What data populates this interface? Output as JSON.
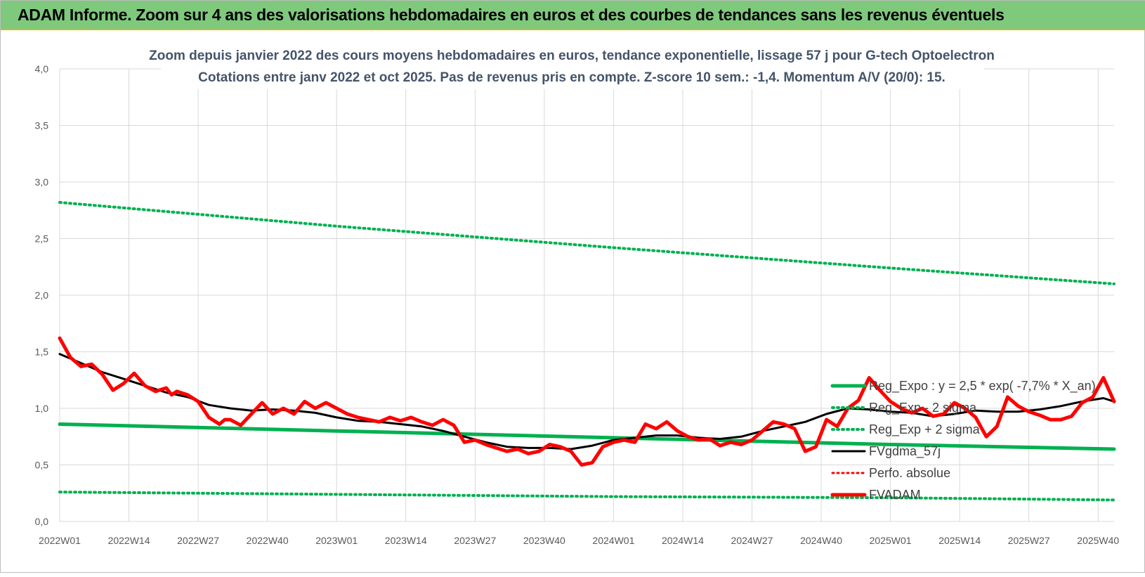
{
  "banner": {
    "title": "ADAM Informe. Zoom sur 4 ans des valorisations hebdomadaires en euros et des courbes de tendances sans les revenus éventuels"
  },
  "chart_data": {
    "type": "line",
    "title_lines": [
      "Zoom depuis janvier 2022 des cours moyens hebdomadaires en euros, tendance exponentielle, lissage 57 j pour G-tech Optoelectron",
      "Cotations entre janv 2022 et oct 2025. Pas de revenus pris en compte. Z-score 10 sem.: -1,4. Momentum A/V (20/0): 15."
    ],
    "y_ticks": [
      "0,0",
      "0,5",
      "1,0",
      "1,5",
      "2,0",
      "2,5",
      "3,0",
      "3,5",
      "4,0"
    ],
    "ylim": [
      0,
      4
    ],
    "x_ticks": [
      "2022W01",
      "2022W14",
      "2022W27",
      "2022W40",
      "2023W01",
      "2023W14",
      "2023W27",
      "2023W40",
      "2024W01",
      "2024W14",
      "2024W27",
      "2024W40",
      "2025W01",
      "2025W14",
      "2025W27",
      "2025W40"
    ],
    "grid": true,
    "legend_position": "right",
    "series": [
      {
        "name": "Reg_Expo : y = 2,5 * exp( -7,7% * X_an)",
        "color": "#00b050",
        "style": "solid",
        "width": 5,
        "x": [
          0,
          52,
          104,
          156,
          198
        ],
        "values": [
          0.86,
          0.8,
          0.74,
          0.68,
          0.64
        ]
      },
      {
        "name": "Reg_Exp - 2 sigma",
        "color": "#00b050",
        "style": "dotted",
        "width": 4,
        "x": [
          0,
          52,
          104,
          156,
          198
        ],
        "values": [
          0.26,
          0.24,
          0.22,
          0.21,
          0.19
        ]
      },
      {
        "name": "Reg_Exp + 2 sigma",
        "color": "#00b050",
        "style": "dotted",
        "width": 4,
        "x": [
          0,
          52,
          104,
          156,
          198
        ],
        "values": [
          2.82,
          2.61,
          2.42,
          2.24,
          2.1
        ]
      },
      {
        "name": "FVgdma_57j",
        "color": "#000000",
        "style": "solid",
        "width": 3,
        "x": [
          0,
          4,
          8,
          12,
          16,
          20,
          24,
          28,
          32,
          36,
          40,
          44,
          48,
          52,
          56,
          60,
          64,
          68,
          72,
          76,
          80,
          84,
          88,
          92,
          96,
          100,
          104,
          108,
          112,
          116,
          120,
          124,
          128,
          132,
          136,
          140,
          144,
          148,
          152,
          156,
          160,
          164,
          168,
          172,
          176,
          180,
          184,
          188,
          192,
          196,
          198
        ],
        "values": [
          1.48,
          1.4,
          1.32,
          1.26,
          1.2,
          1.14,
          1.1,
          1.03,
          1.0,
          0.98,
          0.99,
          0.98,
          0.96,
          0.92,
          0.89,
          0.88,
          0.86,
          0.84,
          0.8,
          0.75,
          0.7,
          0.66,
          0.65,
          0.65,
          0.64,
          0.67,
          0.72,
          0.74,
          0.76,
          0.76,
          0.74,
          0.73,
          0.75,
          0.8,
          0.84,
          0.88,
          0.95,
          1.0,
          0.99,
          0.97,
          0.96,
          0.93,
          0.95,
          0.98,
          0.97,
          0.97,
          0.99,
          1.02,
          1.06,
          1.09,
          1.06
        ]
      },
      {
        "name": "Perfo. absolue",
        "color": "#ff0000",
        "style": "dotted",
        "width": 3,
        "x": [],
        "values": []
      },
      {
        "name": "FVADAM",
        "color": "#ff0000",
        "style": "solid",
        "width": 5,
        "x": [
          0,
          2,
          4,
          6,
          8,
          10,
          12,
          14,
          16,
          18,
          20,
          21,
          22,
          24,
          26,
          28,
          30,
          31,
          32,
          34,
          36,
          38,
          40,
          42,
          44,
          46,
          48,
          50,
          52,
          54,
          56,
          58,
          60,
          62,
          64,
          66,
          68,
          70,
          72,
          74,
          76,
          78,
          80,
          82,
          84,
          86,
          88,
          90,
          92,
          94,
          96,
          98,
          100,
          102,
          104,
          106,
          108,
          110,
          112,
          114,
          116,
          118,
          120,
          122,
          124,
          126,
          128,
          130,
          132,
          134,
          136,
          138,
          140,
          142,
          144,
          146,
          148,
          150,
          152,
          154,
          156,
          158,
          160,
          162,
          164,
          166,
          168,
          170,
          172,
          174,
          176,
          178,
          180,
          182,
          184,
          186,
          188,
          190,
          192,
          194,
          196,
          198
        ],
        "values": [
          1.62,
          1.45,
          1.37,
          1.39,
          1.3,
          1.16,
          1.22,
          1.31,
          1.2,
          1.15,
          1.18,
          1.12,
          1.15,
          1.12,
          1.06,
          0.92,
          0.86,
          0.9,
          0.9,
          0.85,
          0.95,
          1.05,
          0.95,
          1.0,
          0.95,
          1.06,
          1.0,
          1.05,
          1.0,
          0.95,
          0.92,
          0.9,
          0.88,
          0.92,
          0.89,
          0.92,
          0.88,
          0.85,
          0.9,
          0.85,
          0.7,
          0.72,
          0.68,
          0.65,
          0.62,
          0.64,
          0.6,
          0.62,
          0.68,
          0.66,
          0.62,
          0.5,
          0.52,
          0.66,
          0.7,
          0.72,
          0.7,
          0.86,
          0.82,
          0.88,
          0.8,
          0.75,
          0.72,
          0.73,
          0.67,
          0.7,
          0.68,
          0.72,
          0.8,
          0.88,
          0.86,
          0.82,
          0.62,
          0.66,
          0.9,
          0.84,
          1.0,
          1.07,
          1.27,
          1.16,
          1.06,
          1.0,
          0.96,
          1.0,
          0.93,
          0.95,
          1.05,
          1.0,
          0.92,
          0.75,
          0.84,
          1.1,
          1.02,
          0.97,
          0.94,
          0.9,
          0.9,
          0.93,
          1.05,
          1.1,
          1.27,
          1.06
        ]
      }
    ]
  }
}
